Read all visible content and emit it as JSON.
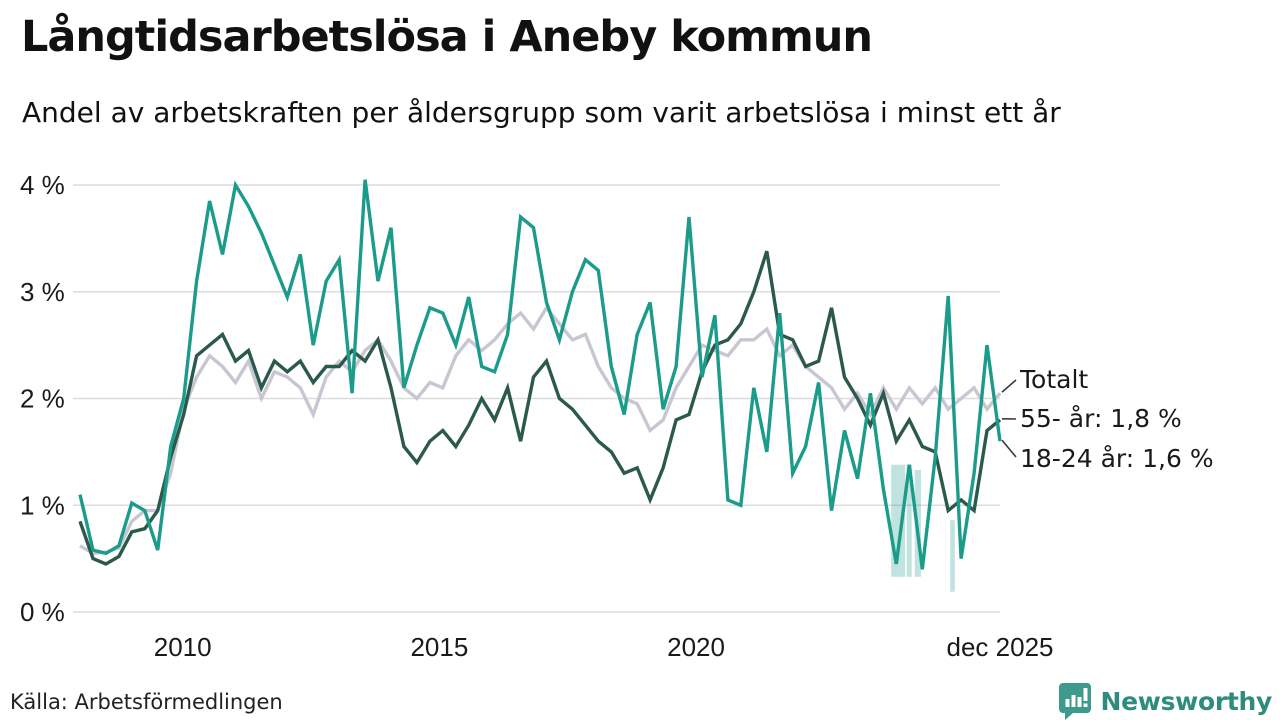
{
  "header": {
    "title": "Långtidsarbetslösa i Aneby kommun",
    "subtitle": "Andel av arbetskraften per åldersgrupp som varit arbetslösa i minst ett år"
  },
  "chart_data": {
    "type": "line",
    "title": "Långtidsarbetslösa i Aneby kommun",
    "subtitle": "Andel av arbetskraften per åldersgrupp som varit arbetslösa i minst ett år",
    "unit": "% av arbetskraften",
    "grid": "horizontal",
    "legend_position": "right-edge-annotations",
    "x_start": 2008.0,
    "x_end": 2025.92,
    "ylim": [
      0,
      4
    ],
    "y_ticks": [
      {
        "v": 0,
        "label": "0 %"
      },
      {
        "v": 1,
        "label": "1 %"
      },
      {
        "v": 2,
        "label": "2 %"
      },
      {
        "v": 3,
        "label": "3 %"
      },
      {
        "v": 4,
        "label": "4 %"
      }
    ],
    "x_ticks": [
      {
        "t": 2010.0,
        "label": "2010"
      },
      {
        "t": 2015.0,
        "label": "2015"
      },
      {
        "t": 2020.0,
        "label": "2020"
      },
      {
        "t": 2025.92,
        "label": "dec 2025"
      }
    ],
    "series": [
      {
        "name": "Totalt",
        "end_label": "Totalt",
        "color": "#c8c6d2",
        "values": [
          0.62,
          0.55,
          0.56,
          0.6,
          0.85,
          0.95,
          0.95,
          1.3,
          1.9,
          2.2,
          2.4,
          2.3,
          2.15,
          2.35,
          2.0,
          2.25,
          2.2,
          2.1,
          1.85,
          2.2,
          2.35,
          2.25,
          2.45,
          2.55,
          2.35,
          2.1,
          2.0,
          2.15,
          2.1,
          2.4,
          2.55,
          2.45,
          2.55,
          2.7,
          2.8,
          2.65,
          2.85,
          2.7,
          2.55,
          2.6,
          2.3,
          2.1,
          2.0,
          1.95,
          1.7,
          1.8,
          2.1,
          2.3,
          2.5,
          2.45,
          2.4,
          2.55,
          2.55,
          2.65,
          2.4,
          2.5,
          2.3,
          2.2,
          2.1,
          1.9,
          2.05,
          1.85,
          2.1,
          1.9,
          2.1,
          1.95,
          2.1,
          1.9,
          2.0,
          2.1,
          1.9,
          2.05
        ]
      },
      {
        "name": "55- år",
        "end_label": "55- år: 1,8 %",
        "last_value": "1,8 %",
        "color": "#2b594b",
        "values": [
          0.85,
          0.5,
          0.45,
          0.52,
          0.75,
          0.78,
          0.95,
          1.45,
          1.85,
          2.4,
          2.5,
          2.6,
          2.35,
          2.45,
          2.1,
          2.35,
          2.25,
          2.35,
          2.15,
          2.3,
          2.3,
          2.45,
          2.35,
          2.55,
          2.1,
          1.55,
          1.4,
          1.6,
          1.7,
          1.55,
          1.75,
          2.0,
          1.8,
          2.1,
          1.6,
          2.2,
          2.35,
          2.0,
          1.9,
          1.75,
          1.6,
          1.5,
          1.3,
          1.35,
          1.05,
          1.35,
          1.8,
          1.85,
          2.25,
          2.5,
          2.55,
          2.7,
          3.0,
          3.38,
          2.6,
          2.55,
          2.3,
          2.35,
          2.85,
          2.2,
          2.0,
          1.75,
          2.05,
          1.6,
          1.8,
          1.55,
          1.5,
          0.95,
          1.05,
          0.95,
          1.7,
          1.8
        ]
      },
      {
        "name": "18-24 år",
        "end_label": "18-24 år: 1,6 %",
        "last_value": "1,6 %",
        "color": "#1b9c8b",
        "values": [
          1.1,
          0.58,
          0.55,
          0.62,
          1.02,
          0.95,
          0.58,
          1.55,
          2.0,
          3.1,
          3.85,
          3.35,
          4.0,
          3.8,
          3.55,
          3.25,
          2.95,
          3.35,
          2.5,
          3.1,
          3.3,
          2.05,
          4.05,
          3.1,
          3.6,
          2.1,
          2.5,
          2.85,
          2.8,
          2.5,
          2.95,
          2.3,
          2.25,
          2.6,
          3.7,
          3.6,
          2.9,
          2.55,
          3.0,
          3.3,
          3.2,
          2.3,
          1.85,
          2.6,
          2.9,
          1.9,
          2.3,
          3.7,
          2.2,
          2.78,
          1.05,
          1.0,
          2.1,
          1.5,
          2.8,
          1.3,
          1.55,
          2.15,
          0.95,
          1.7,
          1.25,
          2.05,
          1.15,
          0.45,
          1.38,
          0.4,
          1.45,
          2.96,
          0.5,
          1.3,
          2.5,
          1.6
        ]
      }
    ],
    "low_sample_bars": [
      {
        "t0": 2023.8,
        "t1": 2024.07,
        "v_top": 1.38,
        "v_bottom": 0.33
      },
      {
        "t0": 2024.1,
        "t1": 2024.2,
        "v_top": 1.38,
        "v_bottom": 0.33
      },
      {
        "t0": 2024.26,
        "t1": 2024.38,
        "v_top": 1.33,
        "v_bottom": 0.33
      },
      {
        "t0": 2024.95,
        "t1": 2025.04,
        "v_top": 0.86,
        "v_bottom": 0.19
      }
    ],
    "annotations": [
      "Totalt",
      "55- år: 1,8 %",
      "18-24 år: 1,6 %"
    ]
  },
  "footer": {
    "source": "Källa: Arbetsförmedlingen",
    "brand": "Newsworthy",
    "brand_color": "#3d9a8c"
  }
}
